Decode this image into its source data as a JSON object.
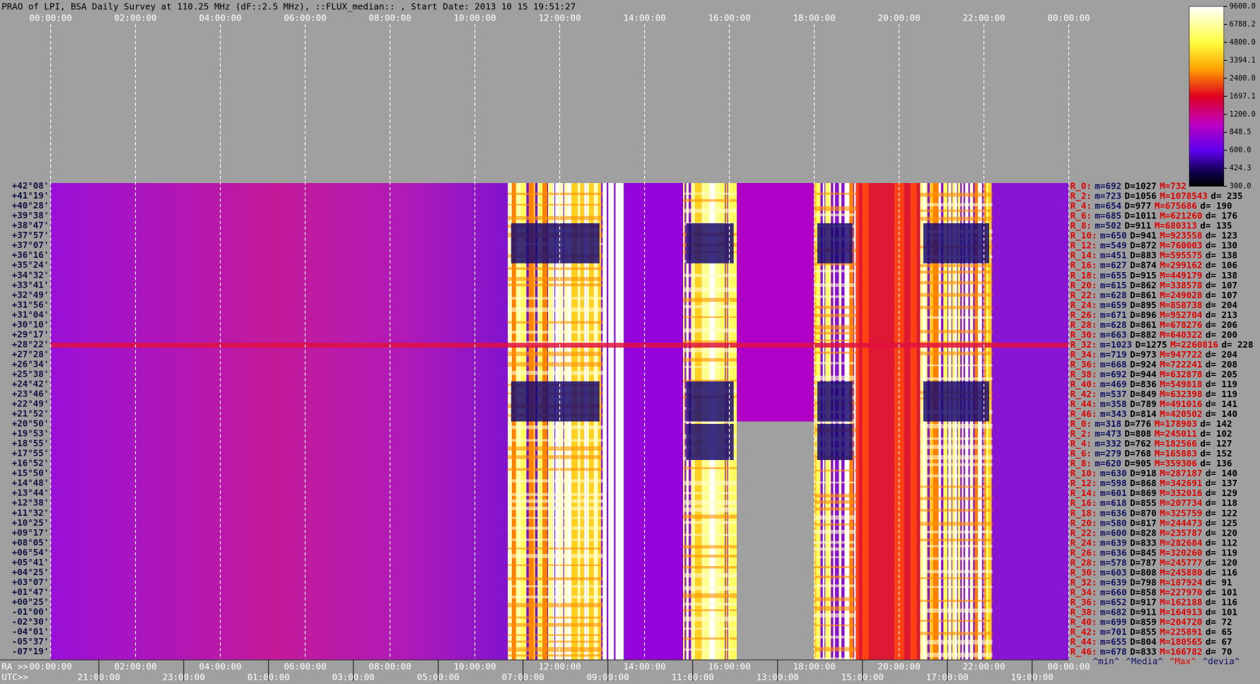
{
  "header": {
    "title": "PRAO of LPI, BSA Daily Survey at 110.25 MHz (dF::2.5 MHz), ::FLUX_median:: , Start Date: 2013 10 15 19:51:27"
  },
  "top_ticks": [
    "00:00:00",
    "02:00:00",
    "04:00:00",
    "06:00:00",
    "08:00:00",
    "10:00:00",
    "12:00:00",
    "14:00:00",
    "16:00:00",
    "18:00:00",
    "20:00:00",
    "22:00:00",
    "00:00:00"
  ],
  "ra_axis": {
    "label": "RA >>",
    "ticks": [
      "00:00:00",
      "02:00:00",
      "04:00:00",
      "06:00:00",
      "08:00:00",
      "10:00:00",
      "12:00:00",
      "14:00:00",
      "16:00:00",
      "18:00:00",
      "20:00:00",
      "22:00:00",
      "00:00:00"
    ]
  },
  "utc_axis": {
    "label": "UTC>>",
    "ticks": [
      "21:00:00",
      "23:00:00",
      "01:00:00",
      "03:00:00",
      "05:00:00",
      "07:00:00",
      "09:00:00",
      "11:00:00",
      "13:00:00",
      "15:00:00",
      "17:00:00",
      "19:00:00"
    ]
  },
  "declinations": [
    "+42°08'",
    "+41°19'",
    "+40°28'",
    "+39°38'",
    "+38°47'",
    "+37°57'",
    "+37°07'",
    "+36°16'",
    "+35°24'",
    "+34°32'",
    "+33°41'",
    "+32°49'",
    "+31°56'",
    "+31°04'",
    "+30°10'",
    "+29°17'",
    "+28°22'",
    "+27°28'",
    "+26°34'",
    "+25°38'",
    "+24°42'",
    "+23°46'",
    "+22°49'",
    "+21°52'",
    "+20°50'",
    "+19°53'",
    "+18°55'",
    "+17°55'",
    "+16°52'",
    "+15°50'",
    "+14°48'",
    "+13°44'",
    "+12°38'",
    "+11°32'",
    "+10°25'",
    "+09°17'",
    "+08°05'",
    "+06°54'",
    "+05°41'",
    "+04°25'",
    "+03°07'",
    "+01°47'",
    "+00°25'",
    "-01°00'",
    "-02°30'",
    "-04°01'",
    "-05°37'",
    "-07°19'"
  ],
  "stats": [
    [
      "R_0:",
      "m=692",
      "D=1027",
      "M=732"
    ],
    [
      "R_2:",
      "m=723",
      "D=1056",
      "M=1078543",
      "d= 235"
    ],
    [
      "R_4:",
      "m=654",
      "D=977",
      "M=675686",
      "d= 190"
    ],
    [
      "R_6:",
      "m=685",
      "D=1011",
      "M=621260",
      "d= 176"
    ],
    [
      "R_8:",
      "m=502",
      "D=911",
      "M=680313",
      "d= 135"
    ],
    [
      "R_10:",
      "m=650",
      "D=941",
      "M=923558",
      "d= 123"
    ],
    [
      "R_12:",
      "m=549",
      "D=872",
      "M=760003",
      "d= 130"
    ],
    [
      "R_14:",
      "m=451",
      "D=883",
      "M=595575",
      "d= 138"
    ],
    [
      "R_16:",
      "m=627",
      "D=874",
      "M=299162",
      "d= 106"
    ],
    [
      "R_18:",
      "m=655",
      "D=915",
      "M=449179",
      "d= 138"
    ],
    [
      "R_20:",
      "m=615",
      "D=862",
      "M=338578",
      "d= 107"
    ],
    [
      "R_22:",
      "m=628",
      "D=861",
      "M=249028",
      "d= 107"
    ],
    [
      "R_24:",
      "m=659",
      "D=895",
      "M=858738",
      "d= 204"
    ],
    [
      "R_26:",
      "m=671",
      "D=896",
      "M=952704",
      "d= 213"
    ],
    [
      "R_28:",
      "m=628",
      "D=861",
      "M=678276",
      "d= 206"
    ],
    [
      "R_30:",
      "m=663",
      "D=882",
      "M=640322",
      "d= 200"
    ],
    [
      "R_32:",
      "m=1023",
      "D=1275",
      "M=2260816",
      "d= 228"
    ],
    [
      "R_34:",
      "m=719",
      "D=973",
      "M=947722",
      "d= 204"
    ],
    [
      "R_36:",
      "m=668",
      "D=924",
      "M=722241",
      "d= 208"
    ],
    [
      "R_38:",
      "m=692",
      "D=944",
      "M=632878",
      "d= 205"
    ],
    [
      "R_40:",
      "m=469",
      "D=836",
      "M=549818",
      "d= 119"
    ],
    [
      "R_42:",
      "m=537",
      "D=849",
      "M=632398",
      "d= 119"
    ],
    [
      "R_44:",
      "m=358",
      "D=789",
      "M=491016",
      "d= 141"
    ],
    [
      "R_46:",
      "m=343",
      "D=814",
      "M=420502",
      "d= 140"
    ],
    [
      "R_0:",
      "m=318",
      "D=776",
      "M=178903",
      "d= 142"
    ],
    [
      "R_2:",
      "m=473",
      "D=808",
      "M=245011",
      "d= 102"
    ],
    [
      "R_4:",
      "m=332",
      "D=762",
      "M=182566",
      "d= 127"
    ],
    [
      "R_6:",
      "m=279",
      "D=768",
      "M=165883",
      "d= 152"
    ],
    [
      "R_8:",
      "m=620",
      "D=905",
      "M=359306",
      "d= 136"
    ],
    [
      "R_10:",
      "m=630",
      "D=918",
      "M=287187",
      "d= 140"
    ],
    [
      "R_12:",
      "m=598",
      "D=868",
      "M=342691",
      "d= 137"
    ],
    [
      "R_14:",
      "m=601",
      "D=869",
      "M=332016",
      "d= 129"
    ],
    [
      "R_16:",
      "m=618",
      "D=855",
      "M=207734",
      "d= 118"
    ],
    [
      "R_18:",
      "m=636",
      "D=870",
      "M=325759",
      "d= 122"
    ],
    [
      "R_20:",
      "m=580",
      "D=817",
      "M=244473",
      "d= 125"
    ],
    [
      "R_22:",
      "m=600",
      "D=828",
      "M=235787",
      "d= 120"
    ],
    [
      "R_24:",
      "m=639",
      "D=833",
      "M=282684",
      "d= 112"
    ],
    [
      "R_26:",
      "m=636",
      "D=845",
      "M=320260",
      "d= 119"
    ],
    [
      "R_28:",
      "m=578",
      "D=787",
      "M=245777",
      "d= 120"
    ],
    [
      "R_30:",
      "m=603",
      "D=808",
      "M=245880",
      "d= 116"
    ],
    [
      "R_32:",
      "m=639",
      "D=798",
      "M=187924",
      "d= 91"
    ],
    [
      "R_34:",
      "m=660",
      "D=858",
      "M=227970",
      "d= 101"
    ],
    [
      "R_36:",
      "m=652",
      "D=917",
      "M=162188",
      "d= 116"
    ],
    [
      "R_38:",
      "m=682",
      "D=911",
      "M=164913",
      "d= 101"
    ],
    [
      "R_40:",
      "m=699",
      "D=859",
      "M=204720",
      "d= 72"
    ],
    [
      "R_42:",
      "m=701",
      "D=855",
      "M=225891",
      "d= 65"
    ],
    [
      "R_44:",
      "m=655",
      "D=804",
      "M=180565",
      "d= 67"
    ],
    [
      "R_46:",
      "m=678",
      "D=833",
      "M=166782",
      "d= 70"
    ]
  ],
  "stats_footer": [
    "^min^",
    "^Media^",
    "^Max^",
    "^devia^"
  ],
  "colorbar_ticks": [
    "9600.0",
    "6788.2",
    "4800.0",
    "3394.1",
    "2400.0",
    "1697.1",
    "1200.0",
    "848.5",
    "600.0",
    "424.3",
    "300.0"
  ]
}
